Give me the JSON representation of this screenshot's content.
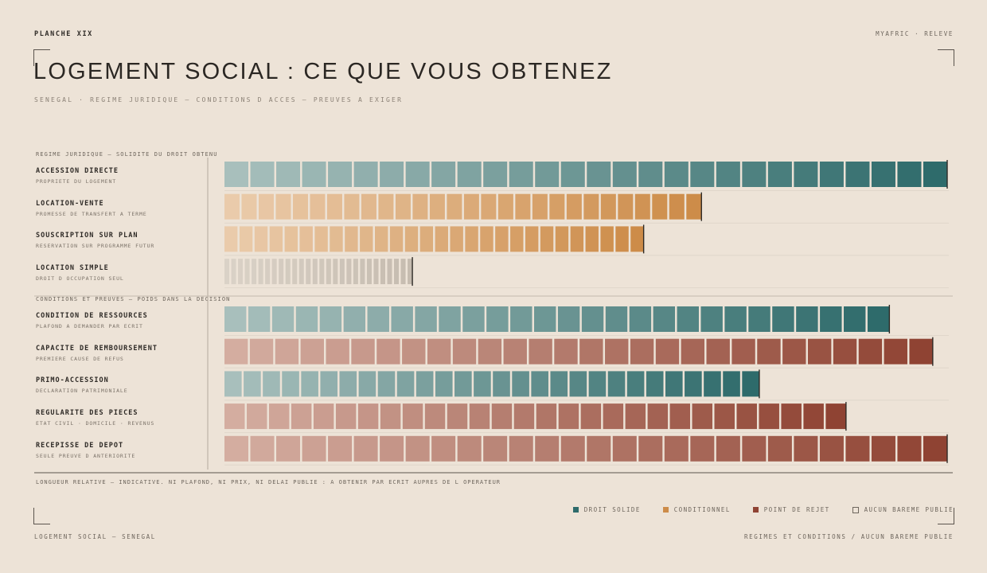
{
  "header": {
    "plate": "PLANCHE XIX",
    "brand": "MYAFRIC · RELEVE",
    "title": "LOGEMENT SOCIAL : CE QUE VOUS OBTENEZ",
    "subtitle": "SENEGAL · REGIME JURIDIQUE — CONDITIONS D ACCES — PREUVES A EXIGER"
  },
  "sections": {
    "regime": "REGIME JURIDIQUE — SOLIDITE DU DROIT OBTENU",
    "conditions": "CONDITIONS ET PREUVES — POIDS DANS LA DECISION"
  },
  "footnote": "LONGUEUR RELATIVE — INDICATIVE. NI PLAFOND, NI PRIX, NI DELAI PUBLIE : A OBTENIR PAR ECRIT AUPRES DE L OPERATEUR",
  "legend": [
    {
      "label": "DROIT SOLIDE",
      "color": "#2e6b6b",
      "style": "fill"
    },
    {
      "label": "CONDITIONNEL",
      "color": "#cd8c49",
      "style": "fill"
    },
    {
      "label": "POINT DE REJET",
      "color": "#8f4333",
      "style": "fill"
    },
    {
      "label": "AUCUN BAREME PUBLIE",
      "color": "#6e665d",
      "style": "outline"
    }
  ],
  "footer": {
    "left": "LOGEMENT SOCIAL — SENEGAL",
    "right": "REGIMES ET CONDITIONS / AUCUN BAREME PUBLIE"
  },
  "palette": {
    "solid": [
      "#a8bfbc",
      "#2e6b6b"
    ],
    "conditional": [
      "#eacbab",
      "#cd8c49"
    ],
    "reject": [
      "#d4ada0",
      "#8f4333"
    ],
    "none": [
      "#dad2c7",
      "#c6bcb0"
    ]
  },
  "chart_data": {
    "type": "bar",
    "orientation": "horizontal",
    "value_scale": [
      0,
      100
    ],
    "groups": [
      {
        "title": "REGIME JURIDIQUE — SOLIDITE DU DROIT OBTENU",
        "rows": [
          {
            "name": "ACCESSION DIRECTE",
            "sub": "PROPRIETE DU LOGEMENT",
            "value": 100,
            "category": "solid",
            "segments": 28
          },
          {
            "name": "LOCATION-VENTE",
            "sub": "PROMESSE DE TRANSFERT A TERME",
            "value": 66,
            "category": "conditional",
            "segments": 28
          },
          {
            "name": "SOUSCRIPTION SUR PLAN",
            "sub": "RESERVATION SUR PROGRAMME FUTUR",
            "value": 58,
            "category": "conditional",
            "segments": 28
          },
          {
            "name": "LOCATION SIMPLE",
            "sub": "DROIT D OCCUPATION SEUL",
            "value": 26,
            "category": "none",
            "segments": 28
          }
        ]
      },
      {
        "title": "CONDITIONS ET PREUVES — POIDS DANS LA DECISION",
        "rows": [
          {
            "name": "CONDITION DE RESSOURCES",
            "sub": "PLAFOND A DEMANDER PAR ECRIT",
            "value": 92,
            "category": "solid",
            "segments": 28
          },
          {
            "name": "CAPACITE DE REMBOURSEMENT",
            "sub": "PREMIERE CAUSE DE REFUS",
            "value": 98,
            "category": "reject",
            "segments": 28
          },
          {
            "name": "PRIMO-ACCESSION",
            "sub": "DECLARATION PATRIMONIALE",
            "value": 74,
            "category": "solid",
            "segments": 28
          },
          {
            "name": "REGULARITE DES PIECES",
            "sub": "ETAT CIVIL · DOMICILE · REVENUS",
            "value": 86,
            "category": "reject",
            "segments": 28
          },
          {
            "name": "RECEPISSE DE DEPOT",
            "sub": "SEULE PREUVE D ANTERIORITE",
            "value": 100,
            "category": "reject",
            "segments": 28
          }
        ]
      }
    ]
  }
}
